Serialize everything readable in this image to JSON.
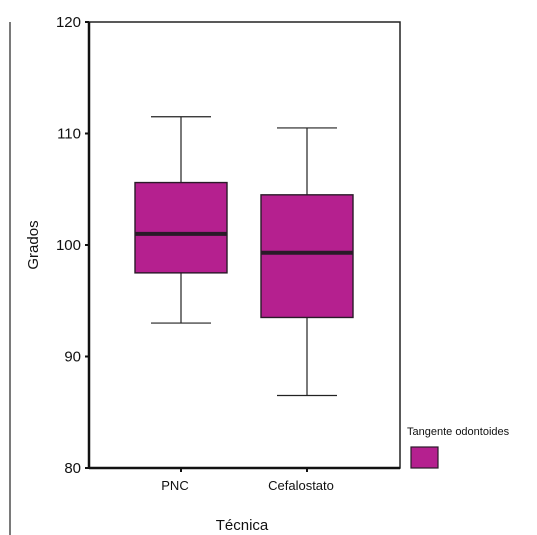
{
  "chart_data": {
    "type": "boxplot",
    "title": "",
    "xlabel": "Técnica",
    "ylabel": "Grados",
    "ylim": [
      80,
      120
    ],
    "yticks": [
      80,
      90,
      100,
      110,
      120
    ],
    "categories": [
      "PNC",
      "Cefalostato"
    ],
    "series": [
      {
        "name": "Tangente odontoides",
        "color": "#b5208f",
        "boxes": [
          {
            "category": "PNC",
            "whisker_low": 93.0,
            "q1": 97.5,
            "median": 101.0,
            "q3": 105.6,
            "whisker_high": 111.5
          },
          {
            "category": "Cefalostato",
            "whisker_low": 86.5,
            "q1": 93.5,
            "median": 99.3,
            "q3": 104.5,
            "whisker_high": 110.5
          }
        ]
      }
    ],
    "legend": {
      "title": "Tangente odontoides",
      "placement": "right"
    },
    "grid": false
  }
}
